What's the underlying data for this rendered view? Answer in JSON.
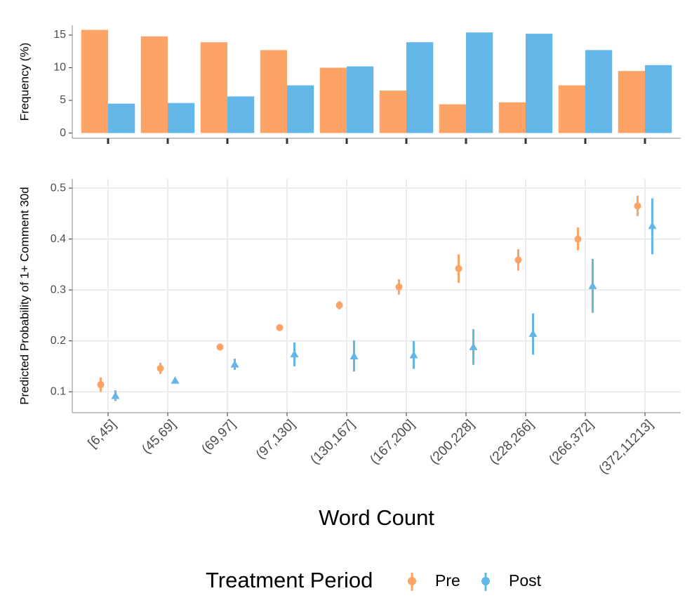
{
  "chart_data": [
    {
      "type": "bar",
      "ylabel": "Frequency (%)",
      "ylim": [
        -0.8,
        16.5
      ],
      "yticks": [
        0,
        5,
        10,
        15
      ],
      "grid": false,
      "series": [
        {
          "name": "Pre",
          "color": "#fca365",
          "values": [
            15.8,
            14.8,
            13.9,
            12.7,
            10.0,
            6.5,
            4.4,
            4.7,
            7.3,
            9.5
          ]
        },
        {
          "name": "Post",
          "color": "#62b7e8",
          "values": [
            4.5,
            4.6,
            5.6,
            7.3,
            10.2,
            13.9,
            15.4,
            15.2,
            12.7,
            10.4
          ]
        }
      ]
    },
    {
      "type": "pointrange",
      "ylabel": "Predicted Probability of 1+ Comment 30d",
      "xlabel": "Word Count",
      "legend_title": "Treatment Period",
      "legend": "bottom",
      "grid": true,
      "ylim": [
        0.059,
        0.518
      ],
      "yticks": [
        0.1,
        0.2,
        0.3,
        0.4,
        0.5
      ],
      "categories": [
        "[6,45]",
        "(45,69]",
        "(69,97]",
        "(97,130]",
        "(130,167]",
        "(167,200]",
        "(200,228]",
        "(228,266]",
        "(266,372]",
        "(372,11213]"
      ],
      "series": [
        {
          "name": "Pre",
          "color": "#fca365",
          "marker": "circle",
          "values": [
            0.114,
            0.146,
            0.188,
            0.226,
            0.27,
            0.306,
            0.342,
            0.359,
            0.4,
            0.465
          ],
          "lower": [
            0.1,
            0.135,
            0.186,
            0.224,
            0.262,
            0.291,
            0.314,
            0.338,
            0.378,
            0.445
          ],
          "upper": [
            0.128,
            0.157,
            0.19,
            0.228,
            0.278,
            0.321,
            0.37,
            0.38,
            0.423,
            0.485
          ]
        },
        {
          "name": "Post",
          "color": "#62b7e8",
          "marker": "triangle",
          "values": [
            0.092,
            0.122,
            0.154,
            0.174,
            0.17,
            0.172,
            0.188,
            0.214,
            0.308,
            0.426
          ],
          "lower": [
            0.082,
            0.12,
            0.143,
            0.15,
            0.14,
            0.145,
            0.153,
            0.173,
            0.255,
            0.37
          ],
          "upper": [
            0.103,
            0.124,
            0.165,
            0.197,
            0.201,
            0.2,
            0.223,
            0.254,
            0.361,
            0.48
          ]
        }
      ]
    }
  ]
}
